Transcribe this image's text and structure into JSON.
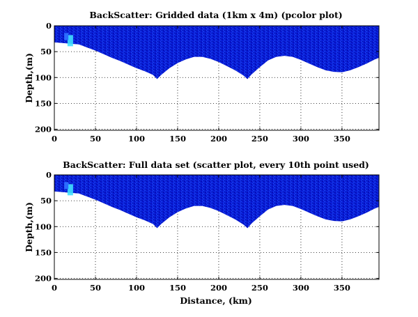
{
  "chart_data": [
    {
      "type": "heatmap",
      "title": "BackScatter: Gridded data (1km x 4m) (pcolor plot)",
      "xlabel": "",
      "ylabel": "Depth,(m)",
      "xlim": [
        0,
        395
      ],
      "ylim": [
        0,
        202
      ],
      "y_reversed": true,
      "x_ticks": [
        0,
        50,
        100,
        150,
        200,
        250,
        300,
        350
      ],
      "y_ticks": [
        0,
        50,
        100,
        150,
        200
      ],
      "grid": true,
      "colormap": "jet",
      "bottom_depth_profile": {
        "distance_km": [
          0,
          22,
          30,
          40,
          50,
          60,
          70,
          80,
          90,
          100,
          110,
          120,
          125,
          130,
          140,
          150,
          160,
          170,
          180,
          190,
          200,
          210,
          220,
          230,
          235,
          240,
          250,
          260,
          270,
          280,
          290,
          300,
          310,
          320,
          330,
          340,
          350,
          360,
          370,
          380,
          390,
          395
        ],
        "depth_m": [
          32,
          35,
          36,
          42,
          48,
          55,
          62,
          68,
          75,
          82,
          88,
          95,
          103,
          95,
          82,
          72,
          65,
          60,
          60,
          64,
          70,
          78,
          86,
          96,
          103,
          94,
          80,
          67,
          60,
          58,
          60,
          66,
          73,
          80,
          86,
          89,
          90,
          86,
          80,
          73,
          65,
          62
        ]
      }
    },
    {
      "type": "scatter",
      "title": "BackScatter: Full data set (scatter plot, every 10th point used)",
      "xlabel": "Distance, (km)",
      "ylabel": "Depth,(m)",
      "xlim": [
        0,
        395
      ],
      "ylim": [
        0,
        202
      ],
      "y_reversed": true,
      "x_ticks": [
        0,
        50,
        100,
        150,
        200,
        250,
        300,
        350
      ],
      "y_ticks": [
        0,
        50,
        100,
        150,
        200
      ],
      "grid": true,
      "colormap": "jet",
      "bottom_depth_profile": {
        "distance_km": [
          0,
          22,
          30,
          40,
          50,
          60,
          70,
          80,
          90,
          100,
          110,
          120,
          125,
          130,
          140,
          150,
          160,
          170,
          180,
          190,
          200,
          210,
          220,
          230,
          235,
          240,
          250,
          260,
          270,
          280,
          290,
          300,
          310,
          320,
          330,
          340,
          350,
          360,
          370,
          380,
          390,
          395
        ],
        "depth_m": [
          32,
          35,
          36,
          42,
          48,
          55,
          62,
          68,
          75,
          82,
          88,
          95,
          103,
          95,
          82,
          72,
          65,
          60,
          60,
          64,
          70,
          78,
          86,
          96,
          103,
          94,
          80,
          67,
          60,
          58,
          60,
          66,
          73,
          80,
          86,
          89,
          90,
          86,
          80,
          73,
          65,
          62
        ]
      }
    }
  ],
  "colors": {
    "deep_blue": "#0000b4",
    "mid_blue": "#0a28e6",
    "light_blue": "#2a6cff",
    "cyan_hotspot": "#40e0ff",
    "grid": "#000000"
  }
}
